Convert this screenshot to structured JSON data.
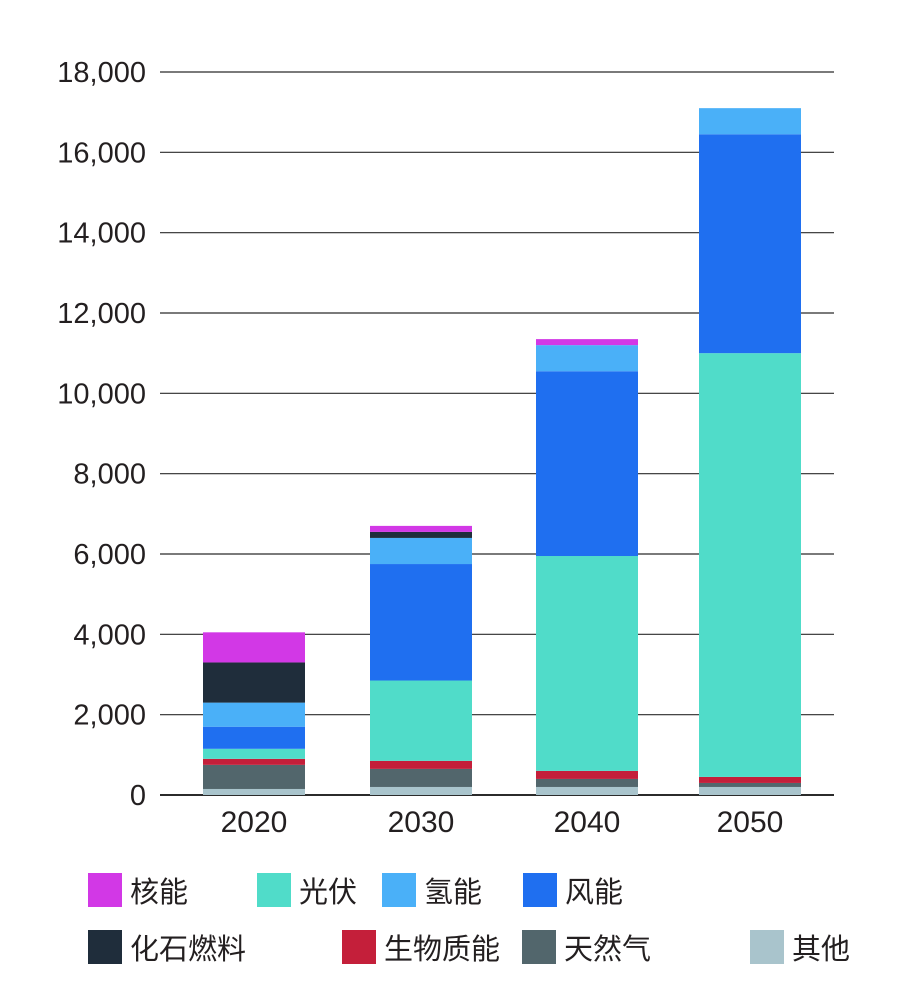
{
  "chart_data": {
    "type": "bar",
    "stacked": true,
    "categories": [
      "2020",
      "2030",
      "2040",
      "2050"
    ],
    "ylim": [
      0,
      18000
    ],
    "yticks": [
      0,
      2000,
      4000,
      6000,
      8000,
      10000,
      12000,
      14000,
      16000,
      18000
    ],
    "ytick_labels": [
      "0",
      "2,000",
      "4,000",
      "6,000",
      "8,000",
      "10,000",
      "12,000",
      "14,000",
      "16,000",
      "18,000"
    ],
    "grid": "horizontal",
    "legend_position": "bottom",
    "title": "",
    "xlabel": "",
    "ylabel": "",
    "series": [
      {
        "name": "其他",
        "color": "#a9c4cc",
        "values": [
          150,
          200,
          200,
          200
        ]
      },
      {
        "name": "天然气",
        "color": "#52666c",
        "values": [
          600,
          450,
          200,
          100
        ]
      },
      {
        "name": "生物质能",
        "color": "#c41f3a",
        "values": [
          150,
          200,
          200,
          150
        ]
      },
      {
        "name": "光伏",
        "color": "#50dcc9",
        "values": [
          250,
          2000,
          5350,
          10550
        ]
      },
      {
        "name": "风能",
        "color": "#1f6ff0",
        "values": [
          550,
          2900,
          4600,
          5450
        ]
      },
      {
        "name": "氢能",
        "color": "#4ab0f8",
        "values": [
          600,
          650,
          650,
          650
        ]
      },
      {
        "name": "化石燃料",
        "color": "#1f2d3b",
        "values": [
          1000,
          150,
          0,
          0
        ]
      },
      {
        "name": "核能",
        "color": "#d238e6",
        "values": [
          750,
          150,
          150,
          0
        ]
      }
    ]
  },
  "legend": [
    {
      "label": "核能",
      "color": "#d238e6"
    },
    {
      "label": "光伏",
      "color": "#50dcc9"
    },
    {
      "label": "氢能",
      "color": "#4ab0f8"
    },
    {
      "label": "风能",
      "color": "#1f6ff0"
    },
    {
      "label": "化石燃料",
      "color": "#1f2d3b"
    },
    {
      "label": "生物质能",
      "color": "#c41f3a"
    },
    {
      "label": "天然气",
      "color": "#52666c"
    },
    {
      "label": "其他",
      "color": "#a9c4cc"
    }
  ]
}
